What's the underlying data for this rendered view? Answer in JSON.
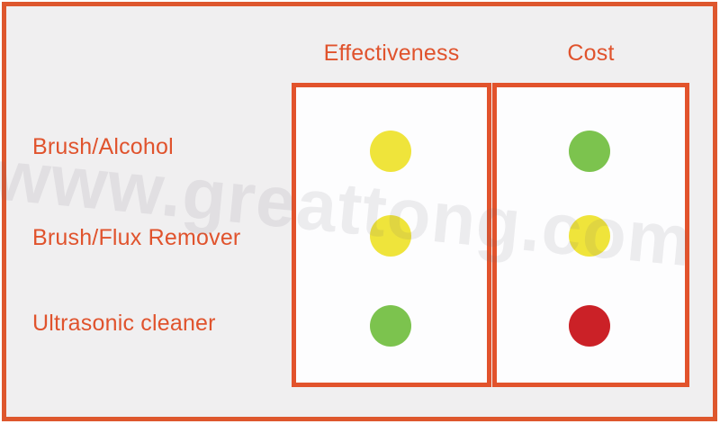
{
  "watermark": {
    "text": "www.greattong.com"
  },
  "colors": {
    "accent_orange": "#E0532D",
    "frame_orange": "#DE572D",
    "panel_background": "#F0EFF0",
    "cell_background": "#FDFDFE",
    "dot_yellow": "#EFE43B",
    "dot_green": "#7CC34E",
    "dot_red": "#CB2127",
    "watermark_gray": "#6E6878"
  },
  "table": {
    "columns": [
      {
        "label": "Effectiveness"
      },
      {
        "label": "Cost"
      }
    ],
    "rows": [
      {
        "label": "Brush/Alcohol",
        "effectiveness": "yellow",
        "cost": "green"
      },
      {
        "label": "Brush/Flux Remover",
        "effectiveness": "yellow",
        "cost": "yellow"
      },
      {
        "label": "Ultrasonic cleaner",
        "effectiveness": "green",
        "cost": "red"
      }
    ]
  },
  "chart_data": {
    "type": "table",
    "title": "",
    "columns": [
      "Effectiveness",
      "Cost"
    ],
    "rows": [
      "Brush/Alcohol",
      "Brush/Flux Remover",
      "Ultrasonic cleaner"
    ],
    "cells": [
      [
        "yellow",
        "green"
      ],
      [
        "yellow",
        "yellow"
      ],
      [
        "green",
        "red"
      ]
    ],
    "cell_encoding": "traffic-light dot color per row/column",
    "legend_position": "none",
    "grid": "two bordered cell columns, row labels outside at left"
  }
}
